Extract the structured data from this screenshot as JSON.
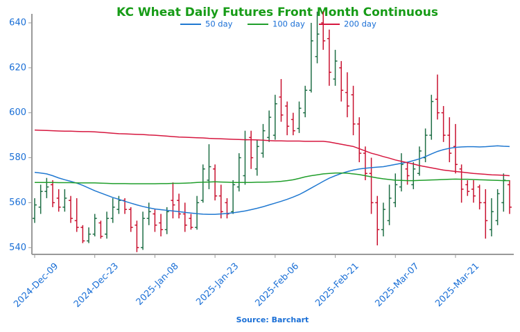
{
  "chart_data": {
    "type": "ohlc",
    "title": "KC Wheat Daily Futures Front Month Continuous",
    "source": "Source: Barchart",
    "categories": [
      "2024-Dec-09",
      null,
      null,
      null,
      null,
      null,
      null,
      null,
      null,
      null,
      "2024-Dec-23",
      null,
      null,
      null,
      null,
      null,
      null,
      null,
      null,
      null,
      "2025-Jan-08",
      null,
      null,
      null,
      null,
      null,
      null,
      null,
      null,
      null,
      "2025-Jan-23",
      null,
      null,
      null,
      null,
      null,
      null,
      null,
      null,
      null,
      "2025-Feb-06",
      null,
      null,
      null,
      null,
      null,
      null,
      null,
      null,
      null,
      "2025-Feb-21",
      null,
      null,
      null,
      null,
      null,
      null,
      null,
      null,
      null,
      "2025-Mar-07",
      null,
      null,
      null,
      null,
      null,
      null,
      null,
      null,
      null,
      "2025-Mar-21",
      null,
      null,
      null,
      null,
      null,
      null,
      null,
      null,
      null
    ],
    "ohlc": {
      "up_color": "#1e6e45",
      "down_color": "#c8102e",
      "open": [
        553,
        558,
        565,
        568,
        562,
        558,
        561,
        552,
        549,
        543,
        546,
        551,
        546,
        553,
        557,
        561,
        557,
        550,
        540,
        553,
        555,
        551,
        548,
        561,
        561,
        555,
        553,
        549,
        561,
        570,
        575,
        563,
        560,
        556,
        567,
        572,
        589,
        575,
        582,
        589,
        590,
        607,
        603,
        597,
        593,
        600,
        610,
        625,
        640,
        633,
        615,
        620,
        609,
        608,
        595,
        582,
        573,
        560,
        548,
        552,
        560,
        567,
        575,
        568,
        573,
        580,
        590,
        606,
        600,
        590,
        585,
        575,
        568,
        566,
        567,
        560,
        548,
        552,
        560,
        568
      ],
      "high": [
        562,
        568,
        571,
        570,
        566,
        566,
        563,
        562,
        550,
        549,
        555,
        552,
        556,
        562,
        563,
        562,
        558,
        552,
        556,
        560,
        557,
        555,
        558,
        569,
        564,
        560,
        555,
        563,
        577,
        586,
        577,
        568,
        562,
        570,
        582,
        592,
        592,
        588,
        595,
        601,
        608,
        615,
        605,
        600,
        605,
        612,
        640,
        645,
        645,
        637,
        628,
        623,
        618,
        612,
        598,
        585,
        580,
        563,
        560,
        568,
        573,
        582,
        578,
        578,
        585,
        593,
        608,
        617,
        603,
        598,
        595,
        577,
        570,
        570,
        568,
        566,
        562,
        566,
        573,
        570
      ],
      "low": [
        551,
        555,
        562,
        558,
        556,
        556,
        551,
        547,
        542,
        542,
        545,
        544,
        544,
        551,
        555,
        555,
        547,
        538,
        539,
        550,
        547,
        545,
        546,
        553,
        553,
        547,
        548,
        548,
        560,
        566,
        561,
        553,
        553,
        555,
        565,
        568,
        575,
        572,
        580,
        587,
        588,
        596,
        590,
        590,
        591,
        598,
        609,
        622,
        628,
        612,
        612,
        605,
        598,
        590,
        578,
        570,
        555,
        541,
        545,
        550,
        558,
        565,
        568,
        566,
        572,
        578,
        588,
        597,
        587,
        578,
        573,
        560,
        563,
        560,
        557,
        544,
        545,
        550,
        556,
        555
      ],
      "close": [
        559,
        565,
        567,
        560,
        558,
        562,
        553,
        549,
        543,
        546,
        553,
        545,
        553,
        558,
        561,
        557,
        549,
        540,
        553,
        556,
        550,
        548,
        556,
        559,
        555,
        550,
        549,
        560,
        575,
        576,
        563,
        556,
        555,
        568,
        580,
        588,
        580,
        585,
        592,
        598,
        604,
        599,
        594,
        592,
        602,
        610,
        632,
        635,
        632,
        618,
        623,
        610,
        603,
        595,
        582,
        573,
        560,
        548,
        557,
        562,
        568,
        577,
        572,
        575,
        583,
        590,
        605,
        600,
        590,
        582,
        577,
        566,
        565,
        563,
        560,
        552,
        556,
        564,
        570,
        558
      ]
    },
    "series": [
      {
        "name": "50 day",
        "color": "#1f78d1",
        "values": [
          573.5,
          573.2,
          572.8,
          572,
          571,
          570.2,
          569.5,
          568.7,
          567.7,
          566.5,
          565.3,
          564.3,
          563.3,
          562.3,
          561.5,
          560.6,
          559.8,
          559,
          558.3,
          557.7,
          557.2,
          556.9,
          556.6,
          556.3,
          556,
          555.7,
          555.4,
          555.1,
          554.9,
          554.8,
          554.8,
          555,
          555.2,
          555.5,
          555.9,
          556.3,
          556.9,
          557.5,
          558.2,
          559,
          559.8,
          560.6,
          561.5,
          562.5,
          563.6,
          565,
          566.5,
          568,
          569.5,
          570.9,
          572,
          573,
          573.8,
          574.5,
          575,
          575.3,
          575.6,
          575.8,
          576,
          576.5,
          577,
          577.5,
          578,
          578.7,
          579.5,
          580.5,
          581.7,
          582.8,
          583.6,
          584.2,
          584.6,
          584.8,
          584.9,
          584.9,
          584.8,
          584.9,
          585.1,
          585.3,
          585.1,
          585
        ]
      },
      {
        "name": "100 day",
        "color": "#1f9e2a",
        "values": [
          569,
          569,
          569,
          569,
          568.9,
          568.9,
          568.9,
          568.8,
          568.8,
          568.8,
          568.8,
          568.7,
          568.6,
          568.5,
          568.5,
          568.5,
          568.4,
          568.4,
          568.4,
          568.4,
          568.4,
          568.5,
          568.5,
          568.6,
          568.6,
          568.7,
          568.8,
          569,
          569.1,
          569.2,
          569.3,
          569.2,
          569.1,
          569,
          569,
          569,
          569,
          569.1,
          569.1,
          569.2,
          569.3,
          569.5,
          569.8,
          570.2,
          570.8,
          571.5,
          572,
          572.4,
          572.8,
          573,
          573.2,
          573.2,
          573.1,
          572.8,
          572.5,
          572,
          571.5,
          571,
          570.6,
          570.3,
          570,
          569.9,
          569.8,
          569.8,
          569.9,
          570,
          570.1,
          570.2,
          570.3,
          570.4,
          570.5,
          570.4,
          570.4,
          570.3,
          570.2,
          570.1,
          570,
          569.9,
          569.8,
          569.8
        ]
      },
      {
        "name": "200 day",
        "color": "#d6163e",
        "values": [
          592.3,
          592.2,
          592.1,
          592,
          591.9,
          591.8,
          591.8,
          591.7,
          591.6,
          591.6,
          591.5,
          591.3,
          591.1,
          590.9,
          590.7,
          590.6,
          590.5,
          590.4,
          590.3,
          590.1,
          590,
          589.8,
          589.6,
          589.4,
          589.2,
          589.1,
          589,
          588.9,
          588.8,
          588.6,
          588.5,
          588.4,
          588.3,
          588.2,
          588.1,
          588,
          588,
          587.9,
          587.8,
          587.6,
          587.5,
          587.5,
          587.4,
          587.4,
          587.4,
          587.3,
          587.3,
          587.3,
          587.3,
          587,
          586.5,
          586,
          585.5,
          585,
          584,
          583,
          582,
          581.3,
          580.5,
          579.8,
          579,
          578.4,
          577.8,
          577.2,
          576.5,
          576,
          575.5,
          575,
          574.5,
          574.2,
          573.9,
          573.6,
          573.3,
          573,
          572.8,
          572.6,
          572.4,
          572.3,
          572.2,
          572
        ]
      }
    ],
    "ylim": [
      537,
      644
    ],
    "yticks": [
      540,
      560,
      580,
      600,
      620,
      640
    ]
  }
}
